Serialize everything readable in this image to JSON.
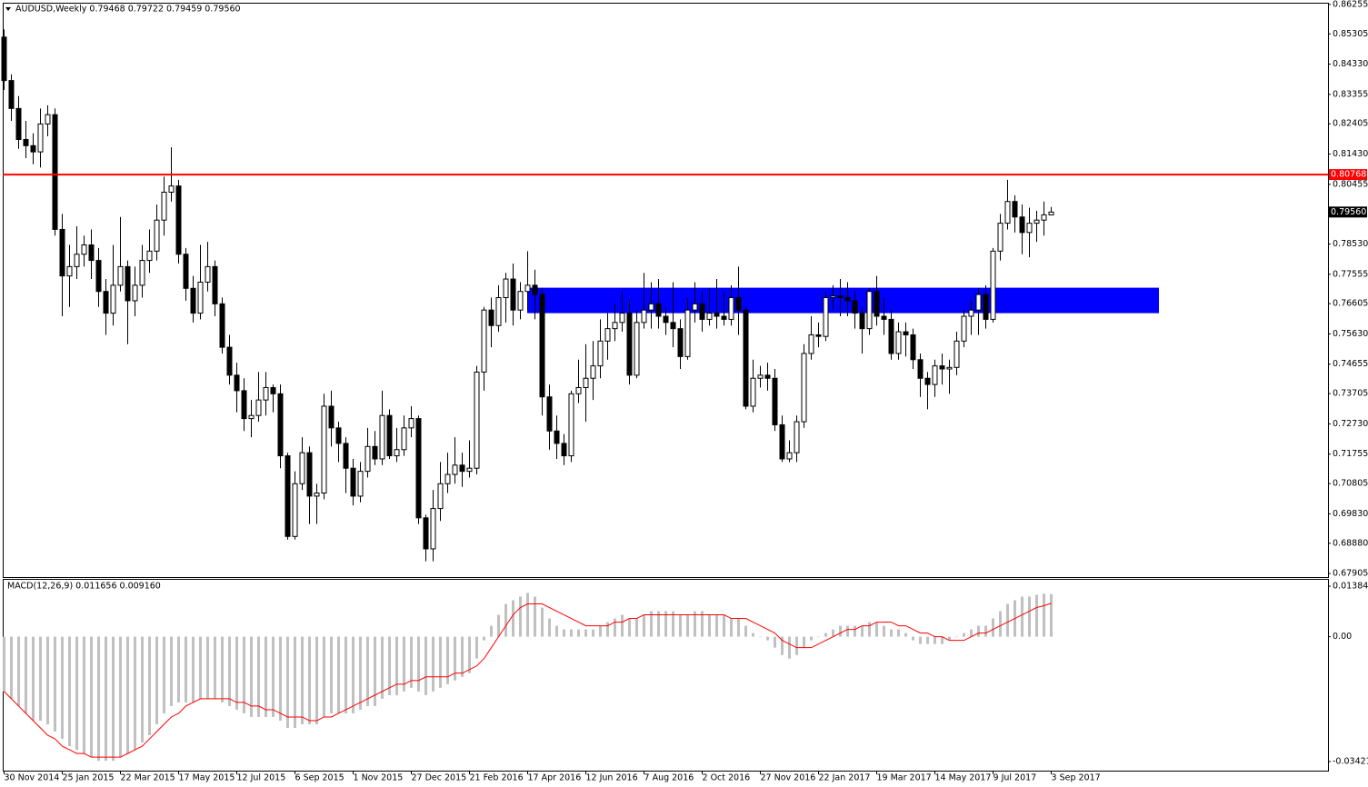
{
  "chart_data": [
    {
      "type": "candlestick",
      "title": "AUDUSD,Weekly  0.79468 0.79722 0.79459 0.79560",
      "categories": [
        "30 Nov 2014",
        null,
        null,
        null,
        null,
        null,
        null,
        null,
        "25 Jan 2015",
        null,
        null,
        null,
        null,
        null,
        null,
        null,
        "22 Mar 2015",
        null,
        null,
        null,
        null,
        null,
        null,
        null,
        "17 May 2015",
        null,
        null,
        null,
        null,
        null,
        null,
        null,
        "12 Jul 2015",
        null,
        null,
        null,
        null,
        null,
        null,
        null,
        "6 Sep 2015",
        null,
        null,
        null,
        null,
        null,
        null,
        null,
        "1 Nov 2015",
        null,
        null,
        null,
        null,
        null,
        null,
        null,
        "27 Dec 2015",
        null,
        null,
        null,
        null,
        null,
        null,
        null,
        "21 Feb 2016",
        null,
        null,
        null,
        null,
        null,
        null,
        null,
        "17 Apr 2016",
        null,
        null,
        null,
        null,
        null,
        null,
        null,
        "12 Jun 2016",
        null,
        null,
        null,
        null,
        null,
        null,
        null,
        "7 Aug 2016",
        null,
        null,
        null,
        null,
        null,
        null,
        null,
        "2 Oct 2016",
        null,
        null,
        null,
        null,
        null,
        null,
        null,
        "27 Nov 2016",
        null,
        null,
        null,
        null,
        null,
        null,
        null,
        "22 Jan 2017",
        null,
        null,
        null,
        null,
        null,
        null,
        null,
        "19 Mar 2017",
        null,
        null,
        null,
        null,
        null,
        null,
        null,
        "14 May 2017",
        null,
        null,
        null,
        null,
        null,
        null,
        null,
        "9 Jul 2017",
        null,
        null,
        null,
        null,
        null,
        null,
        null,
        "3 Sep 2017"
      ],
      "open": [
        0.852,
        0.838,
        0.829,
        0.819,
        0.817,
        0.815,
        0.824,
        0.827,
        0.79,
        0.775,
        0.778,
        0.782,
        0.785,
        0.78,
        0.77,
        0.763,
        0.772,
        0.778,
        0.767,
        0.772,
        0.78,
        0.783,
        0.793,
        0.802,
        0.804,
        0.782,
        0.771,
        0.763,
        0.773,
        0.778,
        0.766,
        0.752,
        0.743,
        0.738,
        0.729,
        0.73,
        0.735,
        0.739,
        0.737,
        0.717,
        0.691,
        0.708,
        0.718,
        0.704,
        0.705,
        0.733,
        0.726,
        0.721,
        0.713,
        0.704,
        0.712,
        0.72,
        0.716,
        0.73,
        0.717,
        0.719,
        0.726,
        0.729,
        0.697,
        0.687,
        0.7,
        0.708,
        0.711,
        0.714,
        0.712,
        0.713,
        0.744,
        0.764,
        0.759,
        0.768,
        0.774,
        0.764,
        0.77,
        0.772,
        0.769,
        0.736,
        0.725,
        0.721,
        0.717,
        0.737,
        0.739,
        0.742,
        0.746,
        0.754,
        0.758,
        0.76,
        0.763,
        0.743,
        0.76,
        0.764,
        0.766,
        0.762,
        0.76,
        0.758,
        0.749,
        0.764,
        0.766,
        0.761,
        0.763,
        0.762,
        0.761,
        0.768,
        0.764,
        0.733,
        0.742,
        0.743,
        0.742,
        0.727,
        0.716,
        0.718,
        0.728,
        0.75,
        0.756,
        0.7555,
        0.768,
        0.7685,
        0.768,
        0.767,
        0.763,
        0.758,
        0.77,
        0.762,
        0.761,
        0.75,
        0.757,
        0.756,
        0.748,
        0.742,
        0.74,
        0.746,
        0.745,
        0.7455,
        0.754,
        0.762,
        0.764,
        0.769,
        0.761,
        0.783,
        0.792,
        0.799,
        0.794,
        0.789,
        0.792,
        0.793,
        0.79468
      ],
      "high": [
        0.8545,
        0.84,
        0.833,
        0.825,
        0.821,
        0.829,
        0.83,
        0.829,
        0.795,
        0.785,
        0.791,
        0.788,
        0.79,
        0.784,
        0.774,
        0.785,
        0.794,
        0.78,
        0.778,
        0.785,
        0.79,
        0.798,
        0.807,
        0.8165,
        0.806,
        0.784,
        0.775,
        0.785,
        0.786,
        0.78,
        0.768,
        0.756,
        0.747,
        0.742,
        0.735,
        0.744,
        0.744,
        0.74,
        0.74,
        0.718,
        0.712,
        0.723,
        0.72,
        0.708,
        0.737,
        0.738,
        0.728,
        0.723,
        0.716,
        0.715,
        0.726,
        0.725,
        0.738,
        0.732,
        0.726,
        0.73,
        0.733,
        0.73,
        0.698,
        0.706,
        0.715,
        0.718,
        0.723,
        0.718,
        0.722,
        0.746,
        0.765,
        0.768,
        0.772,
        0.776,
        0.779,
        0.773,
        0.783,
        0.777,
        0.771,
        0.74,
        0.73,
        0.724,
        0.738,
        0.748,
        0.753,
        0.754,
        0.761,
        0.763,
        0.766,
        0.77,
        0.767,
        0.764,
        0.776,
        0.773,
        0.774,
        0.765,
        0.773,
        0.761,
        0.768,
        0.773,
        0.77,
        0.771,
        0.774,
        0.77,
        0.772,
        0.778,
        0.765,
        0.748,
        0.746,
        0.747,
        0.745,
        0.73,
        0.722,
        0.73,
        0.753,
        0.762,
        0.76,
        0.77,
        0.772,
        0.774,
        0.773,
        0.77,
        0.765,
        0.771,
        0.775,
        0.768,
        0.764,
        0.76,
        0.76,
        0.758,
        0.75,
        0.744,
        0.748,
        0.75,
        0.748,
        0.757,
        0.764,
        0.767,
        0.771,
        0.772,
        0.784,
        0.795,
        0.806,
        0.801,
        0.798,
        0.797,
        0.796,
        0.799,
        0.79722
      ],
      "low": [
        0.835,
        0.825,
        0.816,
        0.813,
        0.811,
        0.81,
        0.82,
        0.788,
        0.762,
        0.765,
        0.774,
        0.778,
        0.774,
        0.765,
        0.756,
        0.759,
        0.77,
        0.753,
        0.762,
        0.768,
        0.776,
        0.78,
        0.788,
        0.799,
        0.779,
        0.767,
        0.76,
        0.761,
        0.77,
        0.762,
        0.75,
        0.74,
        0.731,
        0.725,
        0.723,
        0.728,
        0.73,
        0.731,
        0.713,
        0.69,
        0.69,
        0.706,
        0.695,
        0.695,
        0.703,
        0.72,
        0.715,
        0.705,
        0.701,
        0.702,
        0.71,
        0.714,
        0.714,
        0.716,
        0.715,
        0.717,
        0.723,
        0.695,
        0.683,
        0.683,
        0.696,
        0.705,
        0.708,
        0.707,
        0.71,
        0.711,
        0.738,
        0.752,
        0.757,
        0.76,
        0.759,
        0.761,
        0.764,
        0.761,
        0.73,
        0.719,
        0.716,
        0.714,
        0.715,
        0.734,
        0.728,
        0.735,
        0.742,
        0.748,
        0.754,
        0.757,
        0.74,
        0.742,
        0.758,
        0.758,
        0.758,
        0.756,
        0.752,
        0.745,
        0.748,
        0.76,
        0.757,
        0.759,
        0.758,
        0.759,
        0.759,
        0.756,
        0.732,
        0.731,
        0.739,
        0.738,
        0.725,
        0.715,
        0.715,
        0.715,
        0.726,
        0.748,
        0.752,
        0.754,
        0.764,
        0.762,
        0.762,
        0.758,
        0.75,
        0.756,
        0.759,
        0.756,
        0.748,
        0.748,
        0.749,
        0.745,
        0.736,
        0.732,
        0.736,
        0.74,
        0.737,
        0.743,
        0.752,
        0.756,
        0.756,
        0.758,
        0.76,
        0.78,
        0.79,
        0.789,
        0.782,
        0.781,
        0.786,
        0.788,
        0.79459
      ],
      "close": [
        0.838,
        0.829,
        0.819,
        0.817,
        0.815,
        0.824,
        0.827,
        0.79,
        0.775,
        0.778,
        0.782,
        0.785,
        0.78,
        0.77,
        0.763,
        0.772,
        0.778,
        0.767,
        0.772,
        0.78,
        0.783,
        0.793,
        0.802,
        0.804,
        0.782,
        0.771,
        0.763,
        0.773,
        0.778,
        0.766,
        0.752,
        0.743,
        0.738,
        0.729,
        0.73,
        0.735,
        0.739,
        0.737,
        0.717,
        0.691,
        0.708,
        0.718,
        0.704,
        0.705,
        0.733,
        0.726,
        0.721,
        0.713,
        0.704,
        0.712,
        0.72,
        0.716,
        0.73,
        0.717,
        0.719,
        0.726,
        0.729,
        0.697,
        0.687,
        0.7,
        0.708,
        0.711,
        0.714,
        0.712,
        0.713,
        0.744,
        0.764,
        0.759,
        0.768,
        0.774,
        0.764,
        0.77,
        0.772,
        0.769,
        0.736,
        0.725,
        0.721,
        0.717,
        0.737,
        0.739,
        0.742,
        0.746,
        0.754,
        0.758,
        0.76,
        0.763,
        0.743,
        0.76,
        0.764,
        0.766,
        0.762,
        0.76,
        0.758,
        0.749,
        0.764,
        0.766,
        0.761,
        0.763,
        0.762,
        0.761,
        0.768,
        0.764,
        0.733,
        0.742,
        0.743,
        0.742,
        0.727,
        0.716,
        0.718,
        0.728,
        0.75,
        0.756,
        0.7555,
        0.768,
        0.7685,
        0.768,
        0.767,
        0.763,
        0.758,
        0.77,
        0.762,
        0.761,
        0.75,
        0.757,
        0.756,
        0.748,
        0.742,
        0.74,
        0.746,
        0.745,
        0.7455,
        0.754,
        0.762,
        0.764,
        0.769,
        0.761,
        0.783,
        0.792,
        0.799,
        0.794,
        0.789,
        0.792,
        0.793,
        0.7947,
        0.7956
      ],
      "colors": {
        "up": "#ffffff",
        "down": "#000000",
        "outline": "#000000"
      },
      "ylim": [
        0.6779,
        0.8628
      ],
      "yticks": [
        0.86255,
        0.85305,
        {
          "value": 0.8433,
          "label": "0.84330"
        },
        0.83355,
        0.82405,
        {
          "value": 0.8143,
          "label": "0.81430"
        },
        0.80455,
        {
          "value": 0.7853,
          "label": "0.78530"
        },
        0.77555,
        0.76605,
        {
          "value": 0.7563,
          "label": "0.75630"
        },
        0.74655,
        0.73705,
        {
          "value": 0.7273,
          "label": "0.72730"
        },
        0.71755,
        0.70805,
        {
          "value": 0.6983,
          "label": "0.69830"
        },
        {
          "value": 0.6888,
          "label": "0.68880"
        },
        0.67905
      ],
      "levels": [
        {
          "value": 0.80768,
          "label": "0.80768",
          "color": "#ff0000"
        }
      ],
      "zones": [
        {
          "from": 0.763,
          "to": 0.7712,
          "color": "#0000ff"
        }
      ],
      "last_price": {
        "value": 0.7956,
        "label": "0.79560"
      }
    },
    {
      "type": "macd",
      "title": "MACD(12,26,9) 0.011656 0.009160",
      "series": [
        {
          "type": "bar",
          "color": "#c0c0c0",
          "values": [
            -0.015,
            -0.017,
            -0.019,
            -0.021,
            -0.023,
            -0.023,
            -0.024,
            -0.026,
            -0.028,
            -0.03,
            -0.031,
            -0.032,
            -0.033,
            -0.034,
            -0.034,
            -0.034,
            -0.033,
            -0.032,
            -0.031,
            -0.029,
            -0.027,
            -0.024,
            -0.021,
            -0.019,
            -0.018,
            -0.018,
            -0.018,
            -0.017,
            -0.017,
            -0.017,
            -0.018,
            -0.019,
            -0.02,
            -0.021,
            -0.022,
            -0.022,
            -0.022,
            -0.022,
            -0.023,
            -0.025,
            -0.025,
            -0.024,
            -0.024,
            -0.024,
            -0.022,
            -0.021,
            -0.021,
            -0.021,
            -0.021,
            -0.02,
            -0.019,
            -0.019,
            -0.017,
            -0.016,
            -0.016,
            -0.015,
            -0.014,
            -0.015,
            -0.016,
            -0.015,
            -0.014,
            -0.013,
            -0.012,
            -0.011,
            -0.01,
            -0.006,
            -0.001,
            0.003,
            0.006,
            0.009,
            0.01,
            0.011,
            0.012,
            0.011,
            0.008,
            0.005,
            0.003,
            0.002,
            0.002,
            0.002,
            0.002,
            0.002,
            0.003,
            0.004,
            0.005,
            0.006,
            0.005,
            0.005,
            0.006,
            0.007,
            0.007,
            0.007,
            0.007,
            0.006,
            0.006,
            0.007,
            0.007,
            0.006,
            0.006,
            0.006,
            0.005,
            0.005,
            0.003,
            0.001,
            0.0,
            -0.001,
            -0.003,
            -0.005,
            -0.006,
            -0.005,
            -0.003,
            -0.001,
            0.0,
            0.001,
            0.002,
            0.003,
            0.003,
            0.003,
            0.003,
            0.004,
            0.004,
            0.003,
            0.002,
            0.002,
            0.001,
            -0.001,
            -0.002,
            -0.002,
            -0.002,
            -0.002,
            -0.001,
            0.0,
            0.001,
            0.002,
            0.003,
            0.003,
            0.005,
            0.007,
            0.009,
            0.01,
            0.011,
            0.011,
            0.0115,
            0.0118,
            0.011656
          ]
        },
        {
          "type": "line",
          "color": "#ff0000",
          "values": [
            -0.015,
            -0.017,
            -0.019,
            -0.021,
            -0.023,
            -0.025,
            -0.027,
            -0.028,
            -0.03,
            -0.031,
            -0.032,
            -0.032,
            -0.033,
            -0.033,
            -0.033,
            -0.033,
            -0.033,
            -0.032,
            -0.031,
            -0.03,
            -0.028,
            -0.026,
            -0.024,
            -0.022,
            -0.021,
            -0.019,
            -0.018,
            -0.017,
            -0.017,
            -0.017,
            -0.017,
            -0.017,
            -0.018,
            -0.018,
            -0.019,
            -0.019,
            -0.02,
            -0.02,
            -0.021,
            -0.022,
            -0.022,
            -0.022,
            -0.023,
            -0.023,
            -0.022,
            -0.022,
            -0.021,
            -0.02,
            -0.019,
            -0.018,
            -0.017,
            -0.016,
            -0.015,
            -0.014,
            -0.013,
            -0.013,
            -0.012,
            -0.012,
            -0.011,
            -0.011,
            -0.011,
            -0.011,
            -0.01,
            -0.01,
            -0.009,
            -0.008,
            -0.006,
            -0.003,
            0.0,
            0.003,
            0.006,
            0.008,
            0.009,
            0.009,
            0.009,
            0.008,
            0.007,
            0.006,
            0.005,
            0.004,
            0.003,
            0.003,
            0.003,
            0.003,
            0.004,
            0.004,
            0.005,
            0.005,
            0.006,
            0.006,
            0.006,
            0.006,
            0.006,
            0.006,
            0.006,
            0.006,
            0.006,
            0.006,
            0.006,
            0.006,
            0.005,
            0.005,
            0.005,
            0.004,
            0.003,
            0.002,
            0.001,
            -0.001,
            -0.002,
            -0.003,
            -0.003,
            -0.003,
            -0.002,
            -0.001,
            0.0,
            0.001,
            0.002,
            0.002,
            0.003,
            0.003,
            0.004,
            0.004,
            0.004,
            0.003,
            0.003,
            0.002,
            0.001,
            0.001,
            0.0,
            0.0,
            -0.001,
            -0.001,
            -0.001,
            0.0,
            0.001,
            0.001,
            0.002,
            0.003,
            0.004,
            0.005,
            0.006,
            0.007,
            0.008,
            0.0085,
            0.00916
          ]
        }
      ],
      "ylim": [
        -0.0367,
        0.0156
      ],
      "yticks": [
        0.013841,
        {
          "value": 0,
          "label": "0.00"
        },
        -0.034218
      ]
    }
  ]
}
